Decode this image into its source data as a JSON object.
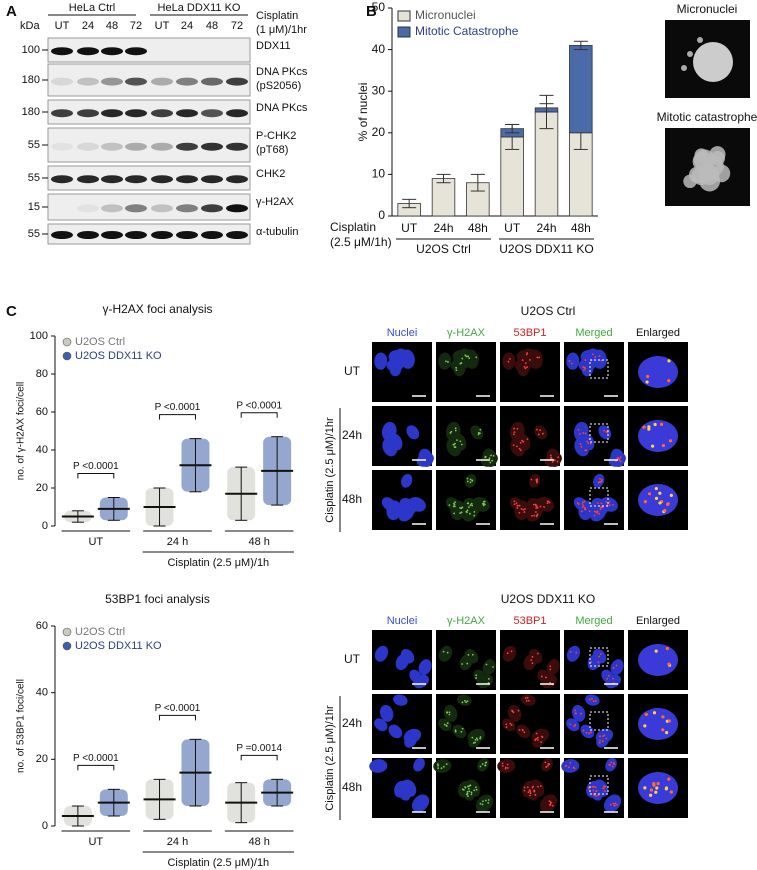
{
  "panel_labels": [
    "A",
    "B",
    "C"
  ],
  "western_blot": {
    "kda": "kDa",
    "groups": [
      "HeLa Ctrl",
      "HeLa DDX11 KO"
    ],
    "lanes": [
      "UT",
      "24",
      "48",
      "72",
      "UT",
      "24",
      "48",
      "72"
    ],
    "treatment": [
      "Cisplatin",
      "(1 μM)/1hr"
    ],
    "rows": [
      {
        "marker": "100",
        "label": [
          "DDX11"
        ]
      },
      {
        "marker": "180",
        "label": [
          "DNA PKcs",
          "(pS2056)"
        ]
      },
      {
        "marker": "180",
        "label": [
          "DNA PKcs"
        ]
      },
      {
        "marker": "55",
        "label": [
          "P-CHK2",
          "(pT68)"
        ]
      },
      {
        "marker": "55",
        "label": [
          "CHK2"
        ]
      },
      {
        "marker": "15",
        "label": [
          "γ-H2AX"
        ]
      },
      {
        "marker": "55",
        "label": [
          "α-tubulin"
        ]
      }
    ]
  },
  "chart_data": [
    {
      "type": "bar",
      "stacked": true,
      "ylabel": "% of nuclei",
      "xlabel": [
        "Cisplatin",
        "(2.5 μM/1h)"
      ],
      "categories": [
        "UT",
        "24h",
        "48h",
        "UT",
        "24h",
        "48h"
      ],
      "groups": [
        "U2OS Ctrl",
        "U2OS DDX11 KO"
      ],
      "series": [
        {
          "name": "Micronuclei",
          "color": "#e6e4d8",
          "values": [
            3,
            9,
            8,
            19,
            25,
            20
          ],
          "errors": [
            1,
            1,
            2,
            3,
            4,
            4
          ]
        },
        {
          "name": "Mitotic Catastrophe",
          "color": "#4a6aa8",
          "values": [
            0,
            0,
            0,
            2,
            1,
            21
          ],
          "errors": [
            0,
            0,
            0,
            1,
            1,
            1
          ]
        }
      ],
      "ylim": [
        0,
        50
      ],
      "yticks": [
        0,
        10,
        20,
        30,
        40,
        50
      ]
    },
    {
      "type": "scatter",
      "title": "γ-H2AX foci analysis",
      "ylabel": "no. of γ-H2AX foci/cell",
      "xlabel": "Cisplatin (2.5 μM)/1h",
      "categories": [
        "UT",
        "24 h",
        "48 h"
      ],
      "series": [
        {
          "name": "U2OS Ctrl",
          "color": "#c9c9c2",
          "values": [
            5,
            10,
            17
          ],
          "errors": [
            3,
            10,
            14
          ]
        },
        {
          "name": "U2OS DDX11 KO",
          "color": "#3f5fa8",
          "values": [
            9,
            32,
            29
          ],
          "errors": [
            6,
            14,
            18
          ]
        }
      ],
      "p_values": [
        "P <0.0001",
        "P <0.0001",
        "P <0.0001"
      ],
      "ylim": [
        0,
        100
      ],
      "yticks": [
        0,
        20,
        40,
        60,
        80,
        100
      ]
    },
    {
      "type": "scatter",
      "title": "53BP1 foci analysis",
      "ylabel": "no. of 53BP1 foci/cell",
      "xlabel": "Cisplatin (2.5 μM)/1h",
      "categories": [
        "UT",
        "24 h",
        "48 h"
      ],
      "series": [
        {
          "name": "U2OS Ctrl",
          "color": "#c9c9c2",
          "values": [
            3,
            8,
            7
          ],
          "errors": [
            3,
            6,
            6
          ]
        },
        {
          "name": "U2OS DDX11 KO",
          "color": "#3f5fa8",
          "values": [
            7,
            16,
            10
          ],
          "errors": [
            4,
            10,
            4
          ]
        }
      ],
      "p_values": [
        "P <0.0001",
        "P <0.0001",
        "P =0.0014"
      ],
      "ylim": [
        0,
        60
      ],
      "yticks": [
        0,
        20,
        40,
        60
      ]
    }
  ],
  "images": [
    "Micronuclei",
    "Mitotic catastrophe"
  ],
  "microscopy": [
    {
      "title": "U2OS Ctrl",
      "columns": [
        "Nuclei",
        "γ-H2AX",
        "53BP1",
        "Merged",
        "Enlarged"
      ],
      "rows": [
        "UT",
        "24h",
        "48h"
      ],
      "treatment": "Cisplatin (2.5 μM)/1hr"
    },
    {
      "title": "U2OS DDX11 KO",
      "columns": [
        "Nuclei",
        "γ-H2AX",
        "53BP1",
        "Merged",
        "Enlarged"
      ],
      "rows": [
        "UT",
        "24h",
        "48h"
      ],
      "treatment": "Cisplatin (2.5 μM)/1hr"
    }
  ]
}
